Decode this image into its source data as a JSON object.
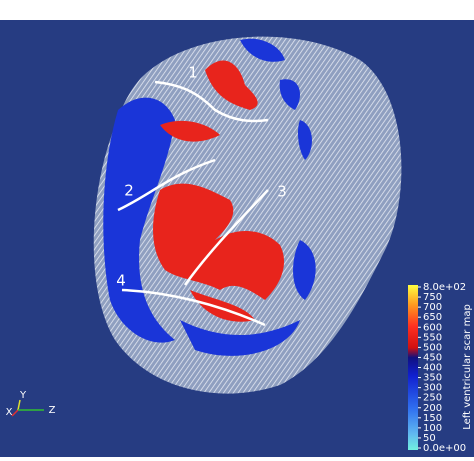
{
  "annotations": [
    "1",
    "2",
    "3",
    "4"
  ],
  "colorbar": {
    "title": "Left ventricular scar map",
    "ticks": [
      {
        "value": 800,
        "label": "8.0e+02"
      },
      750,
      700,
      650,
      600,
      550,
      500,
      450,
      400,
      350,
      300,
      250,
      200,
      150,
      100,
      50,
      {
        "value": 0,
        "label": "0.0e+00"
      }
    ]
  },
  "axes": [
    "X",
    "Y",
    "Z"
  ]
}
